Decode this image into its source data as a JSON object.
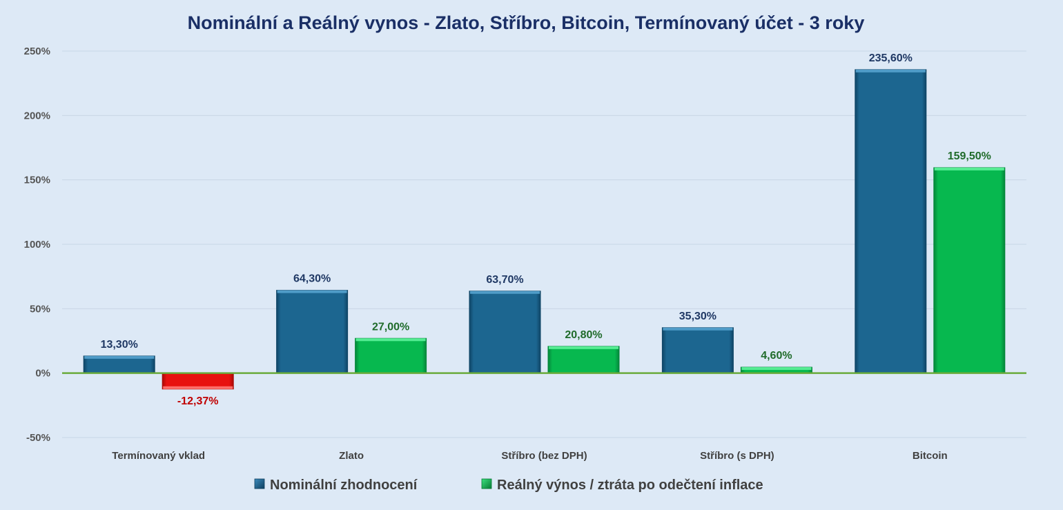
{
  "chart_data": {
    "type": "bar",
    "title": "Nominální a Reálný vynos - Zlato, Stříbro, Bitcoin, Termínovaný účet - 3 roky",
    "categories": [
      "Termínovaný vklad",
      "Zlato",
      "Stříbro (bez DPH)",
      "Stříbro (s DPH)",
      "Bitcoin"
    ],
    "series": [
      {
        "name": "Nominální zhodnocení",
        "values": [
          13.3,
          64.3,
          63.7,
          35.3,
          235.6
        ],
        "labels": [
          "13,30%",
          "64,30%",
          "63,70%",
          "35,30%",
          "235,60%"
        ],
        "color": "#1c6690"
      },
      {
        "name": "Reálný výnos / ztráta po odečtení inflace",
        "values": [
          -12.37,
          27.0,
          20.8,
          4.6,
          159.5
        ],
        "labels": [
          "-12,37%",
          "27,00%",
          "20,80%",
          "4,60%",
          "159,50%"
        ],
        "color": "#07b84f",
        "negative_color": "#e8110f"
      }
    ],
    "ylim": [
      -50,
      250
    ],
    "yticks": [
      -50,
      0,
      50,
      100,
      150,
      200,
      250
    ],
    "ytick_labels": [
      "-50%",
      "0%",
      "50%",
      "100%",
      "150%",
      "200%",
      "250%"
    ],
    "grid": true,
    "legend_position": "bottom",
    "colors": {
      "background": "#dde9f6",
      "zero_line": "#6aaa3a",
      "grid": "#c8d6e5",
      "label_nominal": "#1f3864",
      "label_real": "#1f6b2a",
      "label_negative": "#c00000"
    }
  }
}
